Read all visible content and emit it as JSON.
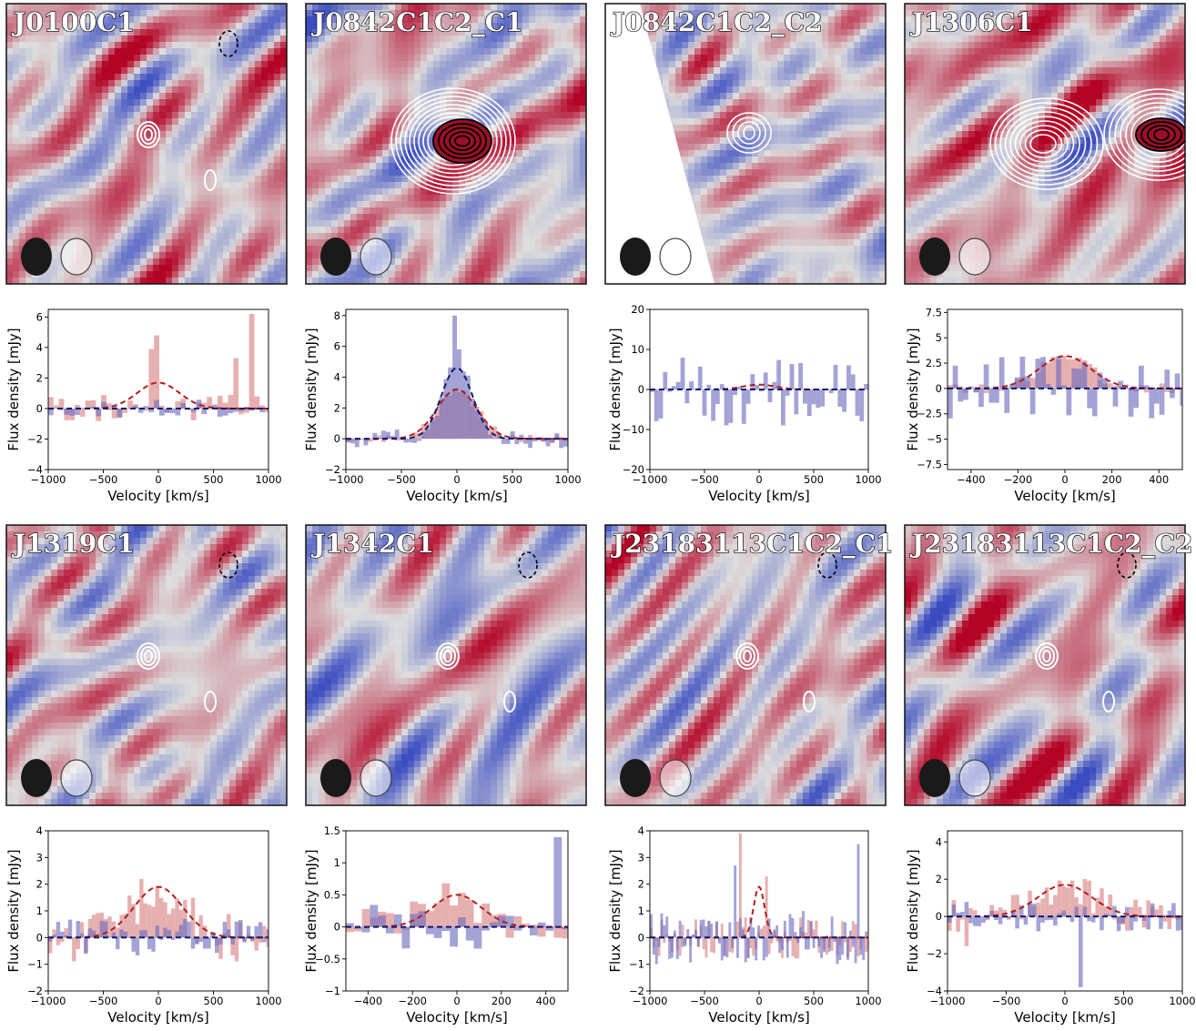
{
  "figure": {
    "colors": {
      "red": "#c03838",
      "red_fill": "#d98080",
      "blue_fill": "#6b6bbd",
      "blue_line": "#0d1a6e",
      "red_line": "#b01e1e"
    }
  },
  "chart_data": [
    {
      "title": "J0100C1",
      "type": "bar",
      "xlabel": "Velocity [km/s]",
      "ylabel": "Flux density [mJy]",
      "xlim": [
        -1000,
        1000
      ],
      "ylim": [
        -4,
        6.5
      ],
      "xticks": [
        -1000,
        -500,
        0,
        500,
        1000
      ],
      "yticks": [
        -4,
        -2,
        0,
        2,
        4,
        6
      ],
      "map": {
        "seed": 3,
        "bias": 0.1,
        "contours": "white-small",
        "beam": "faint"
      },
      "series": [
        {
          "name": "",
          "color": "red",
          "amp_noise": 0.9,
          "spikes": [
            [
              0,
              4.8
            ],
            [
              -60,
              3.9
            ],
            [
              860,
              6.2
            ],
            [
              700,
              3.3
            ]
          ],
          "seed": 11,
          "width": 48
        },
        {
          "name": "",
          "color": "blue",
          "amp_noise": 0.6,
          "seed": 12,
          "width": 48
        }
      ],
      "fits": [
        {
          "color": "red",
          "amp": 1.7,
          "center": 0,
          "sigma": 190
        },
        {
          "color": "blue",
          "amp": 0.0,
          "center": 0,
          "sigma": 150
        }
      ]
    },
    {
      "title": "J0842C1C2_C1",
      "type": "bar",
      "xlabel": "Velocity [km/s]",
      "ylabel": "Flux density [mJy]",
      "xlim": [
        -1000,
        1000
      ],
      "ylim": [
        -2,
        8.4
      ],
      "xticks": [
        -1000,
        -500,
        0,
        500,
        1000
      ],
      "yticks": [
        -2,
        0,
        2,
        4,
        6,
        8
      ],
      "map": {
        "seed": 7,
        "bias": 0.05,
        "contours": "strong",
        "beam": "faint"
      },
      "series": [
        {
          "name": "",
          "color": "red",
          "amp_noise": 0.3,
          "gauss": [
            3.2,
            0,
            180
          ],
          "seed": 21,
          "width": 40
        },
        {
          "name": "",
          "color": "blue",
          "amp_noise": 0.6,
          "gauss": [
            4.6,
            0,
            140
          ],
          "spikes": [
            [
              -20,
              8.0
            ],
            [
              20,
              5.8
            ]
          ],
          "seed": 22,
          "width": 40
        }
      ],
      "fits": [
        {
          "color": "red",
          "amp": 3.2,
          "center": 0,
          "sigma": 180
        },
        {
          "color": "blue",
          "amp": 4.6,
          "center": 0,
          "sigma": 140
        }
      ]
    },
    {
      "title": "J0842C1C2_C2",
      "type": "bar",
      "xlabel": "Velocity [km/s]",
      "ylabel": "Flux density [mJy]",
      "xlim": [
        -1000,
        1000
      ],
      "ylim": [
        -20,
        20
      ],
      "xticks": [
        -1000,
        -500,
        0,
        500,
        1000
      ],
      "yticks": [
        -20,
        -10,
        0,
        10,
        20
      ],
      "map": {
        "seed": 13,
        "bias": 0.0,
        "contours": "white-mid",
        "beam": "plain",
        "mask": true
      },
      "series": [
        {
          "name": "",
          "color": "blue",
          "amp_noise": 9,
          "seed": 31,
          "width": 40
        }
      ],
      "fits": [
        {
          "color": "red",
          "amp": 1.2,
          "center": 0,
          "sigma": 150
        },
        {
          "color": "blue",
          "amp": 0.0,
          "center": 0,
          "sigma": 150
        }
      ]
    },
    {
      "title": "J1306C1",
      "type": "bar",
      "xlabel": "Velocity [km/s]",
      "ylabel": "Flux density [mJy]",
      "xlim": [
        -500,
        500
      ],
      "ylim": [
        -8,
        7.8
      ],
      "xticks": [
        -400,
        -200,
        0,
        200,
        400
      ],
      "yticks": [
        -7.5,
        -5.0,
        -2.5,
        0.0,
        2.5,
        5.0,
        7.5
      ],
      "map": {
        "seed": 17,
        "bias": 0.2,
        "contours": "double",
        "beam": "faint"
      },
      "series": [
        {
          "name": "",
          "color": "red",
          "amp_noise": 0.5,
          "gauss": [
            3.1,
            0,
            110
          ],
          "seed": 41,
          "width": 22
        },
        {
          "name": "",
          "color": "blue",
          "amp_noise": 3.2,
          "seed": 42,
          "width": 22
        }
      ],
      "fits": [
        {
          "color": "red",
          "amp": 3.2,
          "center": 0,
          "sigma": 110
        },
        {
          "color": "blue",
          "amp": 0.0,
          "center": 0,
          "sigma": 110
        }
      ]
    },
    {
      "title": "J1319C1",
      "type": "bar",
      "xlabel": "Velocity [km/s]",
      "ylabel": "Flux density [mJy]",
      "xlim": [
        -1000,
        1000
      ],
      "ylim": [
        -2,
        4
      ],
      "xticks": [
        -1000,
        -500,
        0,
        500,
        1000
      ],
      "yticks": [
        -2,
        -1,
        0,
        1,
        2,
        3,
        4
      ],
      "map": {
        "seed": 19,
        "bias": 0.05,
        "contours": "white-small2",
        "beam": "faint"
      },
      "series": [
        {
          "name": "",
          "color": "red",
          "amp_noise": 0.9,
          "gauss": [
            1.8,
            0,
            220
          ],
          "seed": 51,
          "width": 36
        },
        {
          "name": "",
          "color": "blue",
          "amp_noise": 0.7,
          "seed": 52,
          "width": 36
        }
      ],
      "fits": [
        {
          "color": "red",
          "amp": 1.9,
          "center": 0,
          "sigma": 220
        },
        {
          "color": "blue",
          "amp": 0.0,
          "center": 0,
          "sigma": 200
        }
      ]
    },
    {
      "title": "J1342C1",
      "type": "bar",
      "xlabel": "Velocity [km/s]",
      "ylabel": "Flux density [mJy]",
      "xlim": [
        -500,
        500
      ],
      "ylim": [
        -1,
        1.5
      ],
      "xticks": [
        -400,
        -200,
        0,
        200,
        400
      ],
      "yticks": [
        -1.0,
        -0.5,
        0.0,
        0.5,
        1.0,
        1.5
      ],
      "map": {
        "seed": 23,
        "bias": 0.0,
        "contours": "white-small3",
        "beam": "faint"
      },
      "series": [
        {
          "name": "",
          "color": "red",
          "amp_noise": 0.3,
          "gauss": [
            0.5,
            0,
            110
          ],
          "seed": 61,
          "width": 36
        },
        {
          "name": "",
          "color": "blue",
          "amp_noise": 0.35,
          "spikes": [
            [
              440,
              1.4
            ]
          ],
          "seed": 62,
          "width": 36
        }
      ],
      "fits": [
        {
          "color": "red",
          "amp": 0.5,
          "center": 0,
          "sigma": 110
        },
        {
          "color": "blue",
          "amp": 0.0,
          "center": 0,
          "sigma": 110
        }
      ]
    },
    {
      "title": "J23183113C1C2_C1",
      "type": "bar",
      "xlabel": "Velocity [km/s]",
      "ylabel": "Flux density [mJy]",
      "xlim": [
        -1000,
        1000
      ],
      "ylim": [
        -2,
        4
      ],
      "xticks": [
        -1000,
        -500,
        0,
        500,
        1000
      ],
      "yticks": [
        -2,
        -1,
        0,
        1,
        2,
        3,
        4
      ],
      "map": {
        "seed": 29,
        "bias": 0.05,
        "contours": "white-small4",
        "beam": "faint"
      },
      "series": [
        {
          "name": "",
          "color": "red",
          "amp_noise": 0.8,
          "spikes": [
            [
              -180,
              3.9
            ],
            [
              60,
              2.3
            ]
          ],
          "seed": 71,
          "width": 24
        },
        {
          "name": "",
          "color": "blue",
          "amp_noise": 1.0,
          "spikes": [
            [
              900,
              3.5
            ],
            [
              -220,
              2.7
            ]
          ],
          "seed": 72,
          "width": 24
        }
      ],
      "fits": [
        {
          "color": "red",
          "amp": 1.9,
          "center": 0,
          "sigma": 50
        },
        {
          "color": "blue",
          "amp": 0.0,
          "center": 0,
          "sigma": 50
        }
      ]
    },
    {
      "title": "J23183113C1C2_C2",
      "type": "bar",
      "xlabel": "Velocity [km/s]",
      "ylabel": "Flux density [mJy]",
      "xlim": [
        -1000,
        1000
      ],
      "ylim": [
        -4,
        4.6
      ],
      "xticks": [
        -1000,
        -500,
        0,
        500,
        1000
      ],
      "yticks": [
        -4,
        -2,
        0,
        2,
        4
      ],
      "map": {
        "seed": 31,
        "bias": 0.1,
        "contours": "white-small5",
        "beam": "faint"
      },
      "series": [
        {
          "name": "",
          "color": "red",
          "amp_noise": 0.9,
          "gauss": [
            1.7,
            0,
            230
          ],
          "spikes": [
            [
              -840,
              -1.6
            ]
          ],
          "seed": 81,
          "width": 36
        },
        {
          "name": "",
          "color": "blue",
          "amp_noise": 0.8,
          "spikes": [
            [
              150,
              -3.8
            ]
          ],
          "seed": 82,
          "width": 36
        }
      ],
      "fits": [
        {
          "color": "red",
          "amp": 1.7,
          "center": 0,
          "sigma": 230
        },
        {
          "color": "blue",
          "amp": 0.0,
          "center": 0,
          "sigma": 230
        }
      ]
    }
  ]
}
